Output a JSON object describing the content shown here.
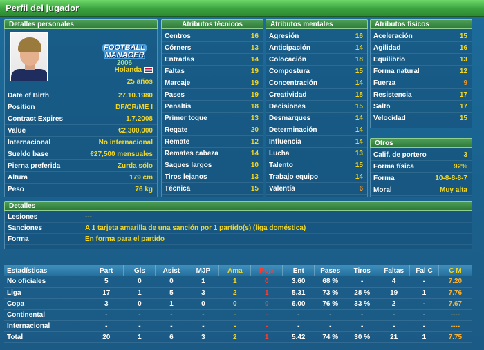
{
  "window": {
    "title": "Perfil del jugador"
  },
  "personal": {
    "header": "Detalles personales",
    "logo": {
      "line1": "FOOTBALL",
      "line2": "MANAGER",
      "line3": "2006"
    },
    "nation": "Holanda",
    "age": "25 años",
    "rows": [
      {
        "label": "Date of Birth",
        "value": "27.10.1980"
      },
      {
        "label": "Position",
        "value": "DF/CR/ME I"
      },
      {
        "label": "Contract Expires",
        "value": "1.7.2008"
      },
      {
        "label": "Value",
        "value": "€2,300,000"
      },
      {
        "label": "Internacional",
        "value": "No internacional"
      },
      {
        "label": "Sueldo base",
        "value": "€27,500 mensuales"
      },
      {
        "label": "Pierna preferida",
        "value": "Zurda sólo"
      },
      {
        "label": "Altura",
        "value": "179 cm"
      },
      {
        "label": "Peso",
        "value": "76 kg"
      }
    ]
  },
  "technical": {
    "header": "Atributos técnicos",
    "rows": [
      {
        "label": "Centros",
        "value": "16"
      },
      {
        "label": "Córners",
        "value": "13"
      },
      {
        "label": "Entradas",
        "value": "14"
      },
      {
        "label": "Faltas",
        "value": "19"
      },
      {
        "label": "Marcaje",
        "value": "19"
      },
      {
        "label": "Pases",
        "value": "19"
      },
      {
        "label": "Penaltis",
        "value": "18"
      },
      {
        "label": "Primer toque",
        "value": "13"
      },
      {
        "label": "Regate",
        "value": "20"
      },
      {
        "label": "Remate",
        "value": "12"
      },
      {
        "label": "Remates cabeza",
        "value": "14"
      },
      {
        "label": "Saques largos",
        "value": "10"
      },
      {
        "label": "Tiros lejanos",
        "value": "13"
      },
      {
        "label": "Técnica",
        "value": "15"
      }
    ]
  },
  "mental": {
    "header": "Atributos mentales",
    "rows": [
      {
        "label": "Agresión",
        "value": "16"
      },
      {
        "label": "Anticipación",
        "value": "14"
      },
      {
        "label": "Colocación",
        "value": "18"
      },
      {
        "label": "Compostura",
        "value": "15"
      },
      {
        "label": "Concentración",
        "value": "14"
      },
      {
        "label": "Creatividad",
        "value": "18"
      },
      {
        "label": "Decisiones",
        "value": "15"
      },
      {
        "label": "Desmarques",
        "value": "14"
      },
      {
        "label": "Determinación",
        "value": "14"
      },
      {
        "label": "Influencia",
        "value": "14"
      },
      {
        "label": "Lucha",
        "value": "13"
      },
      {
        "label": "Talento",
        "value": "15"
      },
      {
        "label": "Trabajo equipo",
        "value": "14"
      },
      {
        "label": "Valentía",
        "value": "6",
        "low": true
      }
    ]
  },
  "physical": {
    "header": "Atributos físicos",
    "rows": [
      {
        "label": "Aceleración",
        "value": "15"
      },
      {
        "label": "Agilidad",
        "value": "16"
      },
      {
        "label": "Equilibrio",
        "value": "13"
      },
      {
        "label": "Forma natural",
        "value": "12"
      },
      {
        "label": "Fuerza",
        "value": "9",
        "low": true
      },
      {
        "label": "Resistencia",
        "value": "17"
      },
      {
        "label": "Salto",
        "value": "17"
      },
      {
        "label": "Velocidad",
        "value": "15"
      }
    ]
  },
  "other": {
    "header": "Otros",
    "rows": [
      {
        "label": "Calif. de portero",
        "value": "3"
      },
      {
        "label": "Forma física",
        "value": "92%"
      },
      {
        "label": "Forma",
        "value": "10-8-8-8-7"
      },
      {
        "label": "Moral",
        "value": "Muy alta"
      }
    ]
  },
  "details": {
    "header": "Detalles",
    "rows": [
      {
        "label": "Lesiones",
        "value": "---"
      },
      {
        "label": "Sanciones",
        "value": "A 1 tarjeta amarilla de una sanción por 1 partido(s) (liga doméstica)"
      },
      {
        "label": "Forma",
        "value": "En forma para el partido"
      }
    ]
  },
  "stats": {
    "columns": [
      "Estadísticas",
      "Part",
      "Gls",
      "Asist",
      "MJP",
      "Ama",
      "Roja",
      "Ent",
      "Pases",
      "Tiros",
      "Faltas",
      "Fal C",
      "C M"
    ],
    "rows": [
      [
        "No oficiales",
        "5",
        "0",
        "0",
        "1",
        "1",
        "0",
        "3.60",
        "68 %",
        "-",
        "4",
        "-",
        "7.20"
      ],
      [
        "Liga",
        "17",
        "1",
        "5",
        "3",
        "2",
        "1",
        "5.31",
        "73 %",
        "28 %",
        "19",
        "1",
        "7.76"
      ],
      [
        "Copa",
        "3",
        "0",
        "1",
        "0",
        "0",
        "0",
        "6.00",
        "76 %",
        "33 %",
        "2",
        "-",
        "7.67"
      ],
      [
        "Continental",
        "-",
        "-",
        "-",
        "-",
        "-",
        "-",
        "-",
        "-",
        "-",
        "-",
        "-",
        "----"
      ],
      [
        "Internacional",
        "-",
        "-",
        "-",
        "-",
        "-",
        "-",
        "-",
        "-",
        "-",
        "-",
        "-",
        "----"
      ],
      [
        "Total",
        "20",
        "1",
        "6",
        "3",
        "2",
        "1",
        "5.42",
        "74 %",
        "30 %",
        "21",
        "1",
        "7.75"
      ]
    ]
  },
  "colors": {
    "value_yellow": "#f3d726",
    "value_orange": "#ff9a1f",
    "red": "#ff3c2e",
    "header_green": "#2f7a3a"
  }
}
